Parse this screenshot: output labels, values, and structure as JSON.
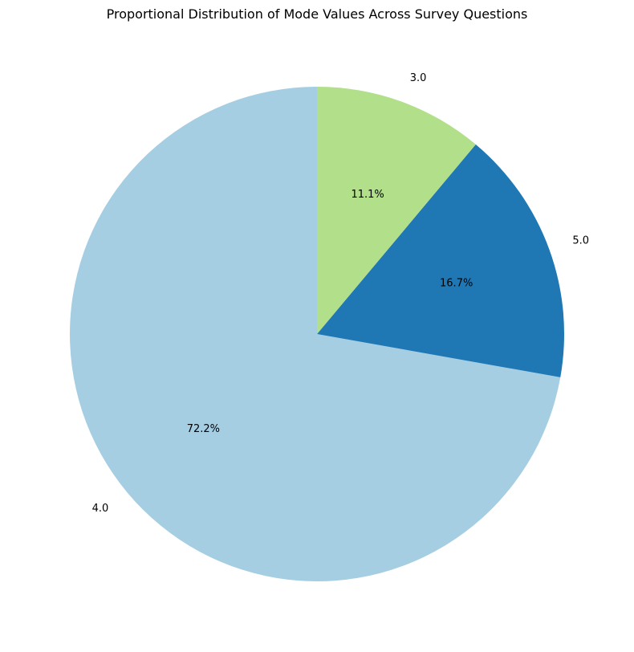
{
  "chart_data": {
    "type": "pie",
    "title": "Proportional Distribution of Mode Values Across Survey Questions",
    "start_angle_deg": 90,
    "direction": "counterclockwise",
    "labels": [
      "4.0",
      "5.0",
      "3.0"
    ],
    "values": [
      72.2,
      16.7,
      11.1
    ],
    "pct_labels": [
      "72.2%",
      "16.7%",
      "11.1%"
    ],
    "colors": [
      "#a6cee3",
      "#1f78b4",
      "#b2df8a"
    ],
    "slices": [
      {
        "label": "4.0",
        "value": 72.2,
        "pct_label": "72.2%",
        "color": "#a6cee3"
      },
      {
        "label": "5.0",
        "value": 16.7,
        "pct_label": "16.7%",
        "color": "#1f78b4"
      },
      {
        "label": "3.0",
        "value": 11.1,
        "pct_label": "11.1%",
        "color": "#b2df8a"
      }
    ]
  }
}
